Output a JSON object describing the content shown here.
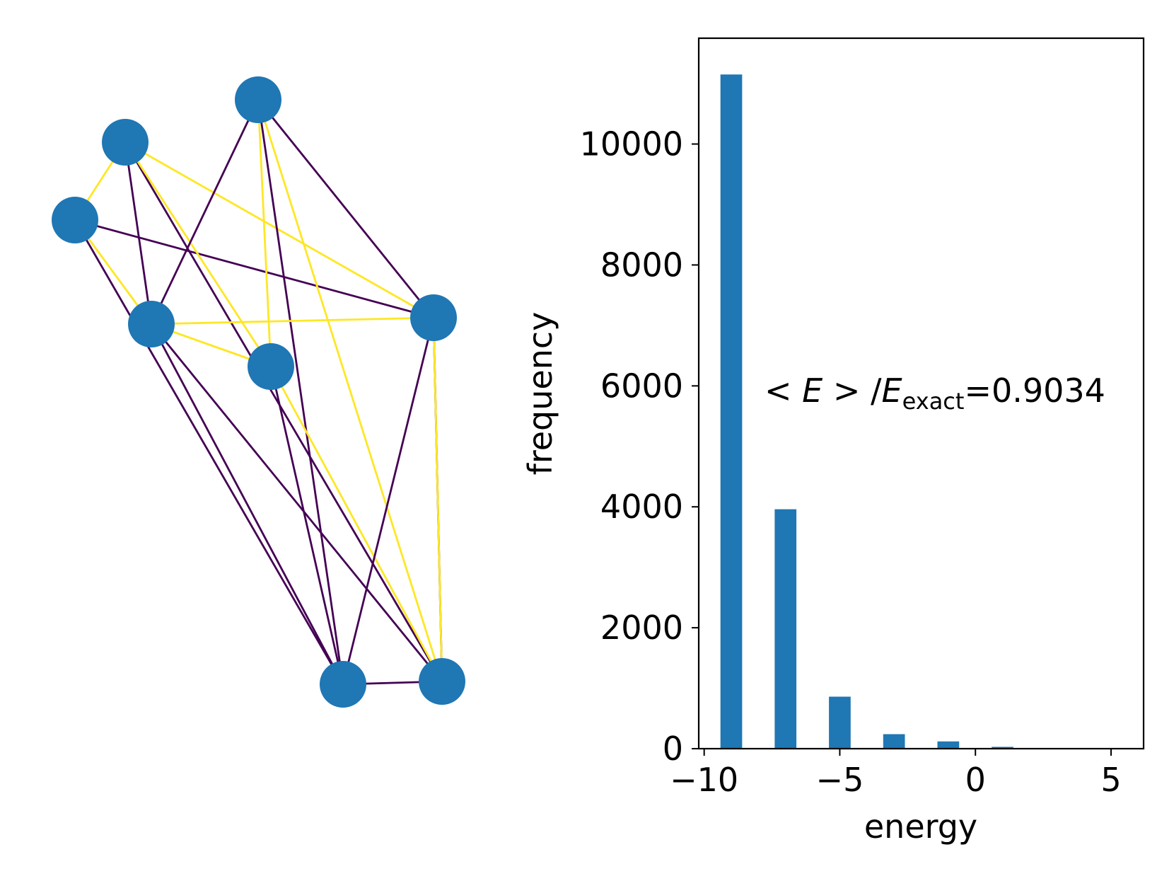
{
  "colors": {
    "node": "#1f77b4",
    "edge_positive": "#fde725",
    "edge_negative": "#440154",
    "bar": "#1f77b4",
    "axes": "#000000",
    "background": "#ffffff"
  },
  "graph": {
    "nodes": [
      "n0",
      "n1",
      "n2",
      "n3",
      "n4",
      "n5",
      "n6",
      "n7"
    ],
    "edges": [
      {
        "from": "n0",
        "to": "n1",
        "sign": "positive"
      },
      {
        "from": "n0",
        "to": "n3",
        "sign": "positive"
      },
      {
        "from": "n0",
        "to": "n5",
        "sign": "negative"
      },
      {
        "from": "n0",
        "to": "n7",
        "sign": "negative"
      },
      {
        "from": "n1",
        "to": "n3",
        "sign": "negative"
      },
      {
        "from": "n1",
        "to": "n6",
        "sign": "negative"
      },
      {
        "from": "n1",
        "to": "n4",
        "sign": "positive"
      },
      {
        "from": "n1",
        "to": "n5",
        "sign": "positive"
      },
      {
        "from": "n2",
        "to": "n3",
        "sign": "negative"
      },
      {
        "from": "n2",
        "to": "n4",
        "sign": "positive"
      },
      {
        "from": "n2",
        "to": "n6",
        "sign": "positive"
      },
      {
        "from": "n2",
        "to": "n5",
        "sign": "negative"
      },
      {
        "from": "n2",
        "to": "n7",
        "sign": "negative"
      },
      {
        "from": "n3",
        "to": "n4",
        "sign": "positive"
      },
      {
        "from": "n3",
        "to": "n5",
        "sign": "positive"
      },
      {
        "from": "n3",
        "to": "n7",
        "sign": "negative"
      },
      {
        "from": "n3",
        "to": "n6",
        "sign": "negative"
      },
      {
        "from": "n4",
        "to": "n6",
        "sign": "positive"
      },
      {
        "from": "n4",
        "to": "n7",
        "sign": "negative"
      },
      {
        "from": "n4",
        "to": "n3",
        "sign": "positive"
      },
      {
        "from": "n5",
        "to": "n6",
        "sign": "negative"
      },
      {
        "from": "n5",
        "to": "n7",
        "sign": "negative"
      },
      {
        "from": "n5",
        "to": "n6",
        "sign": "positive"
      },
      {
        "from": "n6",
        "to": "n7",
        "sign": "negative"
      }
    ]
  },
  "chart_data": {
    "type": "bar",
    "x": [
      -9,
      -7,
      -5,
      -3,
      -1,
      1,
      3,
      5
    ],
    "values": [
      11150,
      3960,
      860,
      240,
      120,
      30,
      0,
      0
    ],
    "xlabel": "energy",
    "ylabel": "frequency",
    "xlim": [
      -10.2,
      6.2
    ],
    "ylim": [
      0,
      11750
    ],
    "xticks": [
      -10,
      -5,
      0,
      5
    ],
    "xtick_labels": [
      "−10",
      "−5",
      "0",
      "5"
    ],
    "yticks": [
      0,
      2000,
      4000,
      6000,
      8000,
      10000
    ],
    "ytick_labels": [
      "0",
      "2000",
      "4000",
      "6000",
      "8000",
      "10000"
    ],
    "annotation": {
      "prefix": "< ",
      "E": "E",
      "middle": " > /",
      "E2": "E",
      "subscript": "exact",
      "suffix": "=0.9034"
    },
    "grid": false,
    "legend": "none"
  }
}
